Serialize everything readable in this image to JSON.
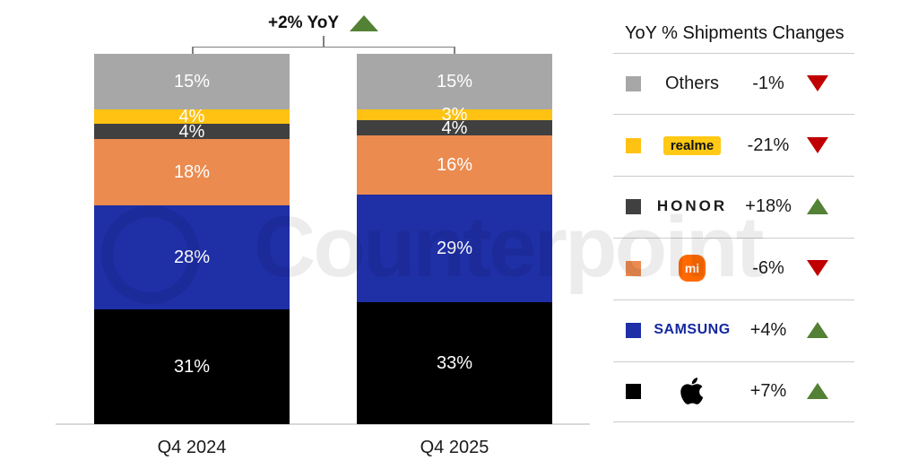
{
  "title": {
    "label": "+2% YoY",
    "direction": "up"
  },
  "watermark": {
    "text": "Counterpoint"
  },
  "chart_data": {
    "type": "bar",
    "stacked": true,
    "title": "+2% YoY",
    "categories": [
      "Q4 2024",
      "Q4 2025"
    ],
    "series": [
      {
        "name": "Others",
        "color": "#A7A7A7",
        "values": [
          15,
          15
        ]
      },
      {
        "name": "realme",
        "color": "#FFC213",
        "values": [
          4,
          3
        ]
      },
      {
        "name": "HONOR",
        "color": "#404040",
        "values": [
          4,
          4
        ]
      },
      {
        "name": "Xiaomi",
        "color": "#EB8B50",
        "values": [
          18,
          16
        ]
      },
      {
        "name": "Samsung",
        "color": "#1F2FA6",
        "values": [
          28,
          29
        ]
      },
      {
        "name": "Apple",
        "color": "#000000",
        "values": [
          31,
          33
        ]
      }
    ],
    "value_suffix": "%",
    "ylim": [
      0,
      100
    ],
    "grid": false,
    "legend_position": "right"
  },
  "legend": {
    "title": "YoY % Shipments Changes",
    "rows": [
      {
        "brand": "Others",
        "logo_text": "Others",
        "change": "-1%",
        "direction": "down"
      },
      {
        "brand": "realme",
        "logo_text": "realme",
        "change": "-21%",
        "direction": "down"
      },
      {
        "brand": "HONOR",
        "logo_text": "HONOR",
        "change": "+18%",
        "direction": "up"
      },
      {
        "brand": "Xiaomi",
        "logo_text": "mi",
        "change": "-6%",
        "direction": "down"
      },
      {
        "brand": "Samsung",
        "logo_text": "SAMSUNG",
        "change": "+4%",
        "direction": "up"
      },
      {
        "brand": "Apple",
        "logo_text": "",
        "change": "+7%",
        "direction": "up"
      }
    ]
  },
  "colors": {
    "up_triangle": "#538135",
    "down_triangle": "#C00000",
    "samsung_logo": "#1428A0",
    "realme_logo_bg": "#FFC915",
    "xiaomi_logo_bg": "#FF6900",
    "axis_line": "#D9D9D9",
    "legend_divider": "#CCCCCC",
    "bracket": "#808080"
  }
}
